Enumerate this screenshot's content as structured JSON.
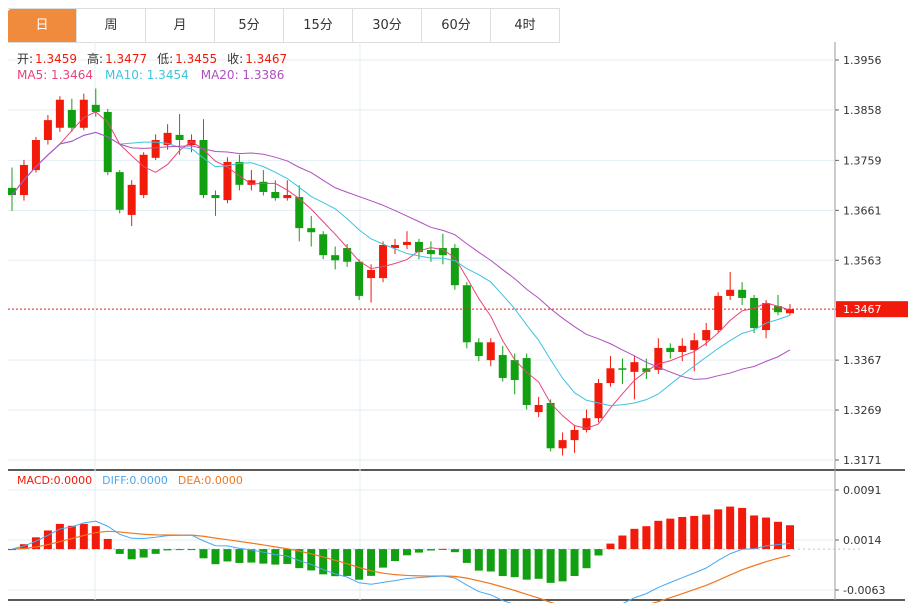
{
  "tabs": [
    {
      "label": "日",
      "active": true
    },
    {
      "label": "周"
    },
    {
      "label": "月"
    },
    {
      "label": "5分"
    },
    {
      "label": "15分"
    },
    {
      "label": "30分"
    },
    {
      "label": "60分"
    },
    {
      "label": "4时"
    }
  ],
  "ohlc_info": {
    "open_label": "开:",
    "open": "1.3459",
    "high_label": "高:",
    "high": "1.3477",
    "low_label": "低:",
    "low": "1.3455",
    "close_label": "收:",
    "close": "1.3467"
  },
  "ma_info": {
    "ma5": "MA5: 1.3464",
    "ma10": "MA10: 1.3454",
    "ma20": "MA20: 1.3386"
  },
  "macd_info": {
    "macd": "MACD:0.0000",
    "diff": "DIFF:0.0000",
    "dea": "DEA:0.0000"
  },
  "colors": {
    "up": "#f21a0a",
    "down": "#12a012",
    "ma5": "#e8457a",
    "ma10": "#3ec3e0",
    "ma20": "#b04fc0",
    "diff": "#4aa8f0",
    "dea": "#f07820",
    "tab_active": "#f08b3d"
  },
  "chart_data": {
    "type": "candlestick",
    "price_axis": {
      "ticks": [
        "1.3956",
        "1.3858",
        "1.3759",
        "1.3661",
        "1.3563",
        "1.3467",
        "1.3367",
        "1.3269",
        "1.3171"
      ],
      "range": [
        1.3171,
        1.3956
      ]
    },
    "current_price": "1.3467",
    "macd_axis": {
      "ticks": [
        "0.0091",
        "0.0014",
        "-0.0063"
      ],
      "range": [
        -0.0063,
        0.0091
      ]
    },
    "candles": [
      [
        1.3705,
        1.3745,
        1.366,
        1.3691
      ],
      [
        1.3691,
        1.376,
        1.368,
        1.375
      ],
      [
        1.374,
        1.3805,
        1.3735,
        1.3799
      ],
      [
        1.3799,
        1.3848,
        1.379,
        1.3838
      ],
      [
        1.3823,
        1.3885,
        1.3815,
        1.3878
      ],
      [
        1.3858,
        1.388,
        1.3815,
        1.3823
      ],
      [
        1.3823,
        1.389,
        1.3818,
        1.3878
      ],
      [
        1.3868,
        1.39,
        1.3845,
        1.3854
      ],
      [
        1.3854,
        1.386,
        1.373,
        1.3736
      ],
      [
        1.3736,
        1.374,
        1.3655,
        1.3662
      ],
      [
        1.3652,
        1.372,
        1.363,
        1.3711
      ],
      [
        1.3691,
        1.3775,
        1.3685,
        1.377
      ],
      [
        1.3764,
        1.381,
        1.376,
        1.3799
      ],
      [
        1.3789,
        1.383,
        1.378,
        1.3813
      ],
      [
        1.3809,
        1.385,
        1.377,
        1.3799
      ],
      [
        1.3789,
        1.381,
        1.3775,
        1.3799
      ],
      [
        1.3799,
        1.384,
        1.3685,
        1.3691
      ],
      [
        1.3691,
        1.37,
        1.365,
        1.3685
      ],
      [
        1.3681,
        1.3765,
        1.3675,
        1.3756
      ],
      [
        1.3756,
        1.377,
        1.37,
        1.3711
      ],
      [
        1.3711,
        1.374,
        1.37,
        1.372
      ],
      [
        1.3717,
        1.374,
        1.369,
        1.3697
      ],
      [
        1.3697,
        1.372,
        1.368,
        1.3685
      ],
      [
        1.3685,
        1.372,
        1.368,
        1.3691
      ],
      [
        1.3687,
        1.371,
        1.36,
        1.3626
      ],
      [
        1.3626,
        1.365,
        1.359,
        1.3618
      ],
      [
        1.3614,
        1.362,
        1.3565,
        1.3573
      ],
      [
        1.3573,
        1.359,
        1.3545,
        1.3563
      ],
      [
        1.3587,
        1.3595,
        1.355,
        1.356
      ],
      [
        1.356,
        1.3565,
        1.3485,
        1.3493
      ],
      [
        1.3528,
        1.3555,
        1.348,
        1.3544
      ],
      [
        1.3528,
        1.36,
        1.352,
        1.3593
      ],
      [
        1.3587,
        1.3605,
        1.3575,
        1.3593
      ],
      [
        1.3593,
        1.362,
        1.3585,
        1.3599
      ],
      [
        1.3599,
        1.3605,
        1.3565,
        1.3579
      ],
      [
        1.3583,
        1.36,
        1.356,
        1.3575
      ],
      [
        1.3587,
        1.3615,
        1.3555,
        1.3573
      ],
      [
        1.3587,
        1.3595,
        1.3505,
        1.3514
      ],
      [
        1.3514,
        1.352,
        1.339,
        1.3402
      ],
      [
        1.3402,
        1.341,
        1.3365,
        1.3375
      ],
      [
        1.3367,
        1.341,
        1.3355,
        1.3402
      ],
      [
        1.3377,
        1.3395,
        1.3325,
        1.3332
      ],
      [
        1.3367,
        1.338,
        1.33,
        1.3328
      ],
      [
        1.3371,
        1.338,
        1.327,
        1.3279
      ],
      [
        1.3265,
        1.3295,
        1.3255,
        1.3279
      ],
      [
        1.3283,
        1.329,
        1.3188,
        1.3194
      ],
      [
        1.3194,
        1.3225,
        1.318,
        1.321
      ],
      [
        1.321,
        1.324,
        1.3185,
        1.323
      ],
      [
        1.323,
        1.327,
        1.3225,
        1.3253
      ],
      [
        1.3253,
        1.333,
        1.3245,
        1.3322
      ],
      [
        1.3322,
        1.3375,
        1.3315,
        1.3351
      ],
      [
        1.3351,
        1.337,
        1.332,
        1.3348
      ],
      [
        1.3344,
        1.3375,
        1.329,
        1.3363
      ],
      [
        1.3351,
        1.337,
        1.333,
        1.3344
      ],
      [
        1.3348,
        1.341,
        1.334,
        1.3391
      ],
      [
        1.3391,
        1.34,
        1.337,
        1.3383
      ],
      [
        1.3383,
        1.341,
        1.3365,
        1.3395
      ],
      [
        1.3387,
        1.342,
        1.3345,
        1.3406
      ],
      [
        1.3406,
        1.344,
        1.3395,
        1.3426
      ],
      [
        1.3426,
        1.35,
        1.342,
        1.3493
      ],
      [
        1.3493,
        1.354,
        1.3485,
        1.3505
      ],
      [
        1.3505,
        1.352,
        1.3475,
        1.3489
      ],
      [
        1.3489,
        1.3495,
        1.342,
        1.343
      ],
      [
        1.3426,
        1.3485,
        1.341,
        1.3479
      ],
      [
        1.3473,
        1.3495,
        1.3455,
        1.3461
      ],
      [
        1.3459,
        1.3477,
        1.3455,
        1.3467
      ]
    ]
  }
}
